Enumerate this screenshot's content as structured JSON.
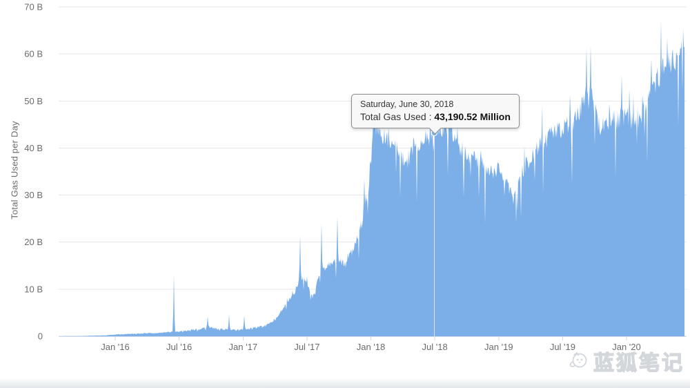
{
  "chart_data": {
    "type": "area",
    "title": "",
    "ylabel": "Total Gas Used per Day",
    "series_name": "Total Gas Used",
    "legend": "none",
    "grid": "horizontal",
    "color": "#7cafe8",
    "ylim": [
      0,
      70
    ],
    "y_ticks": [
      "0",
      "10 B",
      "20 B",
      "30 B",
      "40 B",
      "50 B",
      "60 B",
      "70 B"
    ],
    "x_ticks": [
      {
        "date": "2016-01",
        "label": "Jan '16"
      },
      {
        "date": "2016-07",
        "label": "Jul '16"
      },
      {
        "date": "2017-01",
        "label": "Jan '17"
      },
      {
        "date": "2017-07",
        "label": "Jul '17"
      },
      {
        "date": "2018-01",
        "label": "Jan '18"
      },
      {
        "date": "2018-07",
        "label": "Jul '18"
      },
      {
        "date": "2019-01",
        "label": "Jan '19"
      },
      {
        "date": "2019-07",
        "label": "Jul '19"
      },
      {
        "date": "2020-01",
        "label": "Jan '20"
      }
    ],
    "xlim": [
      "2015-08-04",
      "2020-06-14"
    ],
    "unit_note": "values in billions (B) of gas per day",
    "anchors": [
      [
        "2015-08-04",
        0.02
      ],
      [
        "2015-10-01",
        0.06
      ],
      [
        "2015-12-01",
        0.18
      ],
      [
        "2016-01-15",
        0.4
      ],
      [
        "2016-03-01",
        0.55
      ],
      [
        "2016-05-01",
        0.7
      ],
      [
        "2016-06-20",
        0.95
      ],
      [
        "2016-08-01",
        1.25
      ],
      [
        "2016-09-25",
        1.9
      ],
      [
        "2016-10-20",
        1.55
      ],
      [
        "2016-12-01",
        1.35
      ],
      [
        "2017-01-15",
        1.6
      ],
      [
        "2017-03-01",
        2.1
      ],
      [
        "2017-04-01",
        3.4
      ],
      [
        "2017-05-01",
        6.8
      ],
      [
        "2017-05-25",
        9.0
      ],
      [
        "2017-06-08",
        11.8
      ],
      [
        "2017-06-25",
        12.3
      ],
      [
        "2017-07-05",
        10.8
      ],
      [
        "2017-07-16",
        7.8
      ],
      [
        "2017-08-05",
        13.0
      ],
      [
        "2017-08-25",
        14.8
      ],
      [
        "2017-09-12",
        15.6
      ],
      [
        "2017-10-01",
        16.2
      ],
      [
        "2017-10-22",
        15.2
      ],
      [
        "2017-11-12",
        18.8
      ],
      [
        "2017-12-01",
        23.0
      ],
      [
        "2017-12-20",
        28.5
      ],
      [
        "2018-01-01",
        37.5
      ],
      [
        "2018-01-10",
        45.0
      ],
      [
        "2018-01-28",
        43.5
      ],
      [
        "2018-02-15",
        41.5
      ],
      [
        "2018-03-15",
        40.0
      ],
      [
        "2018-04-10",
        36.5
      ],
      [
        "2018-05-01",
        40.5
      ],
      [
        "2018-06-01",
        42.0
      ],
      [
        "2018-06-30",
        43.2
      ],
      [
        "2018-07-20",
        44.5
      ],
      [
        "2018-08-12",
        44.5
      ],
      [
        "2018-09-05",
        41.0
      ],
      [
        "2018-10-01",
        38.5
      ],
      [
        "2018-11-01",
        37.5
      ],
      [
        "2018-12-01",
        35.0
      ],
      [
        "2019-01-01",
        35.5
      ],
      [
        "2019-01-22",
        32.5
      ],
      [
        "2019-02-12",
        29.0
      ],
      [
        "2019-03-05",
        34.5
      ],
      [
        "2019-04-01",
        38.0
      ],
      [
        "2019-05-01",
        41.0
      ],
      [
        "2019-06-01",
        43.0
      ],
      [
        "2019-07-01",
        44.5
      ],
      [
        "2019-08-05",
        46.0
      ],
      [
        "2019-09-05",
        49.5
      ],
      [
        "2019-09-25",
        50.5
      ],
      [
        "2019-10-12",
        44.5
      ],
      [
        "2019-11-05",
        45.5
      ],
      [
        "2019-12-01",
        46.0
      ],
      [
        "2020-01-01",
        47.5
      ],
      [
        "2020-01-25",
        44.5
      ],
      [
        "2020-02-15",
        47.5
      ],
      [
        "2020-03-05",
        51.5
      ],
      [
        "2020-03-25",
        54.0
      ],
      [
        "2020-04-12",
        56.5
      ],
      [
        "2020-05-05",
        58.5
      ],
      [
        "2020-06-01",
        60.0
      ],
      [
        "2020-06-14",
        61.0
      ]
    ],
    "spikes": [
      [
        "2016-06-17",
        13.2
      ],
      [
        "2016-09-22",
        4.2
      ],
      [
        "2016-11-22",
        4.6
      ],
      [
        "2017-01-05",
        4.4
      ],
      [
        "2017-06-12",
        21.5
      ],
      [
        "2017-08-13",
        24.0
      ],
      [
        "2017-09-28",
        25.5
      ],
      [
        "2017-12-12",
        33.5
      ],
      [
        "2018-01-09",
        47.3
      ],
      [
        "2018-08-15",
        47.0
      ],
      [
        "2019-09-08",
        61.3
      ],
      [
        "2019-09-21",
        61.8
      ],
      [
        "2020-03-12",
        59.0
      ],
      [
        "2020-06-12",
        61.6
      ]
    ],
    "noise": {
      "rel": 0.05,
      "wick_prob": 0.065,
      "wick_depth": [
        0.1,
        0.32
      ],
      "pop_prob": 0.05,
      "pop_height": [
        0.04,
        0.15
      ],
      "seed": 9
    }
  },
  "tooltip": {
    "date": "Saturday, June 30, 2018",
    "label": "Total Gas Used",
    "separator": " : ",
    "value": "43,190.52 Million",
    "point": {
      "date": "2018-06-30",
      "value_billions": 43.19
    }
  },
  "watermark": {
    "text": "蓝狐笔记"
  },
  "colors": {
    "area": "#7cafe8",
    "grid": "#e6e6e6",
    "axis_line": "#ccd6eb",
    "tick": "#ccd6eb",
    "label": "#6b6b6b",
    "crosshair": "#dfe8f3",
    "background": "#ffffff"
  }
}
